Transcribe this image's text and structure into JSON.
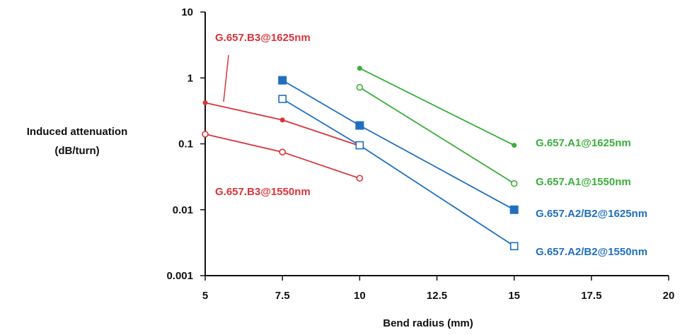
{
  "chart_data": {
    "type": "line",
    "title": "",
    "xlabel": "Bend radius (mm)",
    "ylabel": [
      "Induced attenuation",
      "(dB/turn)"
    ],
    "xlim": [
      5,
      20
    ],
    "ylim": [
      0.001,
      10
    ],
    "yscale": "log",
    "grid": false,
    "x_ticks": [
      "5",
      "7.5",
      "10",
      "12.5",
      "15",
      "17.5",
      "20"
    ],
    "y_ticks": [
      "0.001",
      "0.01",
      "0.1",
      "1",
      "10"
    ],
    "series": [
      {
        "name": "G.657.B3@1625nm",
        "color": "#d9343a",
        "marker": "dot",
        "x": [
          5,
          7.5,
          10
        ],
        "y": [
          0.42,
          0.23,
          0.093
        ]
      },
      {
        "name": "G.657.B3@1550nm",
        "color": "#d9343a",
        "marker": "open-circle",
        "x": [
          5,
          7.5,
          10
        ],
        "y": [
          0.14,
          0.075,
          0.03
        ]
      },
      {
        "name": "G.657.A2/B2@1625nm",
        "color": "#1f6fbf",
        "marker": "filled-square",
        "x": [
          7.5,
          10,
          15
        ],
        "y": [
          0.92,
          0.19,
          0.01
        ]
      },
      {
        "name": "G.657.A2/B2@1550nm",
        "color": "#1f6fbf",
        "marker": "open-square",
        "x": [
          7.5,
          10,
          15
        ],
        "y": [
          0.48,
          0.095,
          0.0028
        ]
      },
      {
        "name": "G.657.A1@1625nm",
        "color": "#3aae3a",
        "marker": "dot",
        "x": [
          10,
          15
        ],
        "y": [
          1.4,
          0.095
        ]
      },
      {
        "name": "G.657.A1@1550nm",
        "color": "#3aae3a",
        "marker": "open-circle",
        "x": [
          10,
          15
        ],
        "y": [
          0.72,
          0.025
        ]
      }
    ]
  }
}
